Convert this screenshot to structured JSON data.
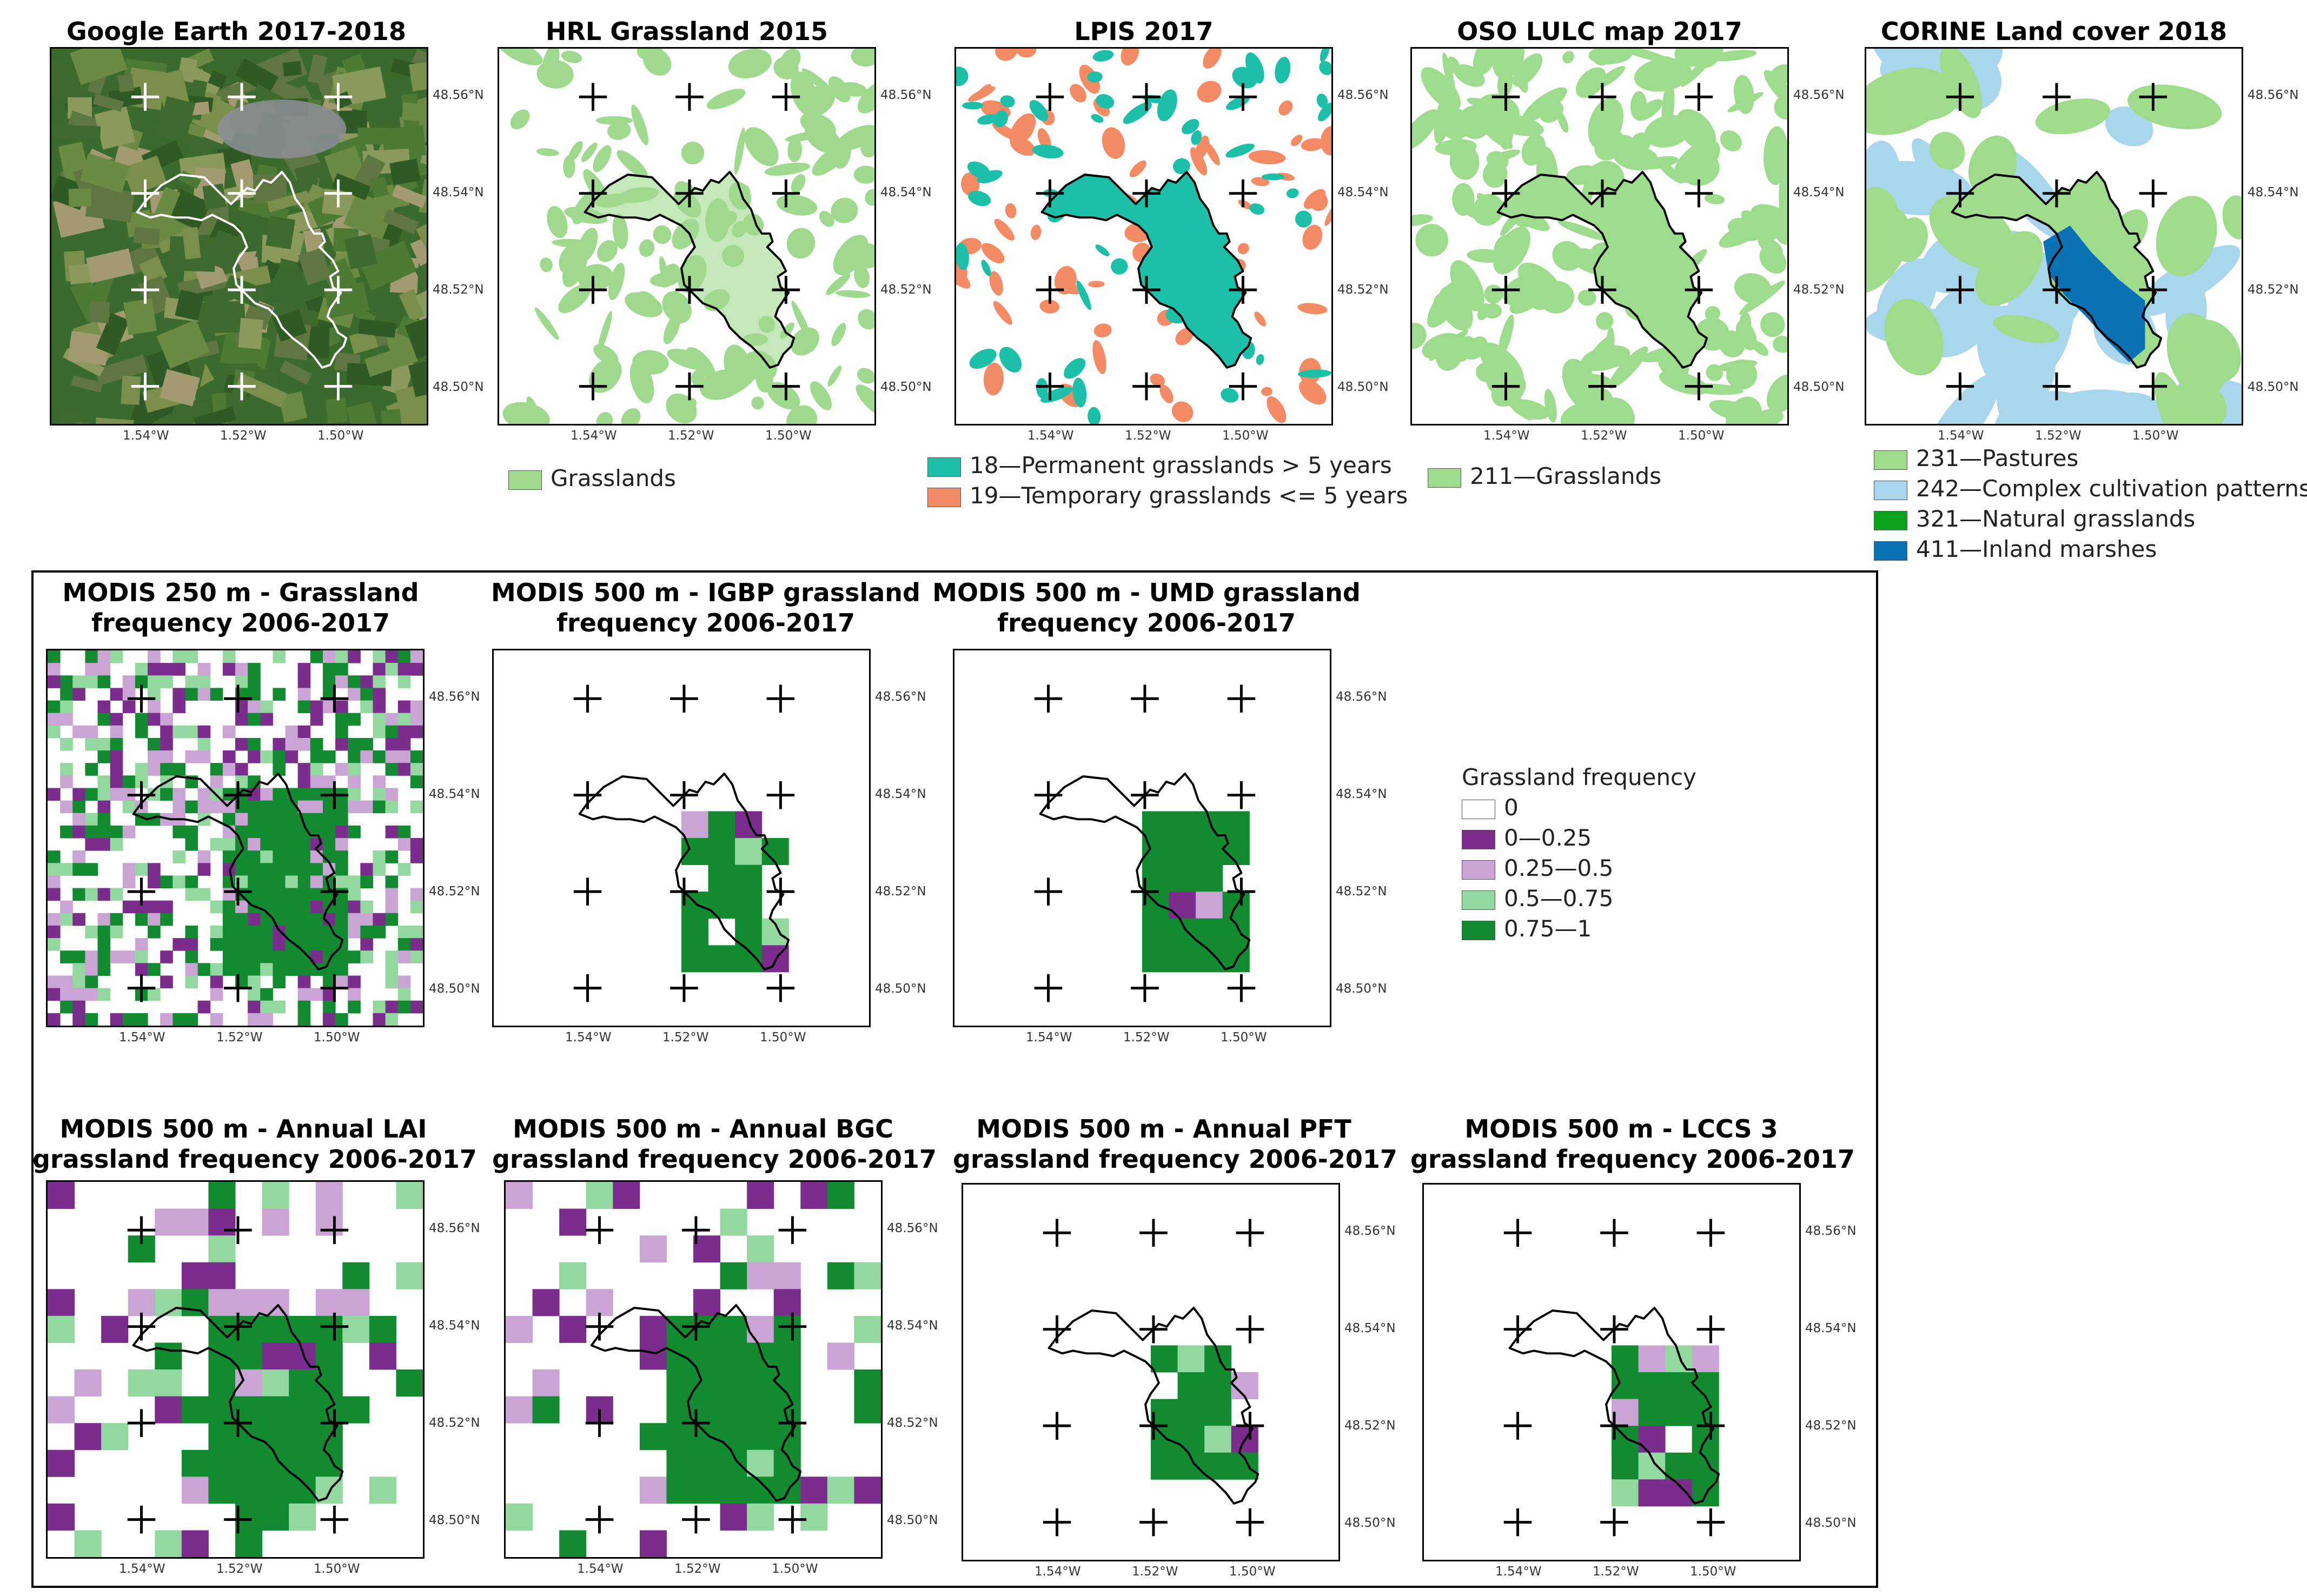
{
  "colors": {
    "hrl": "#9ed98e",
    "lpis_perm": "#1cbfa8",
    "lpis_temp": "#f58b64",
    "oso": "#9cdc8c",
    "corine_pastures": "#9edc8c",
    "corine_complex": "#a8d6ec",
    "corine_natural": "#0ca41c",
    "corine_marsh": "#0a72b4",
    "freq_0": "#ffffff",
    "freq_1": "#7b2d8e",
    "freq_2": "#c9a4d4",
    "freq_3": "#93d89e",
    "freq_4": "#118a30",
    "satellite": "#3b6b2c"
  },
  "axes": {
    "lat_labels": [
      "48.56°N",
      "48.54°N",
      "48.52°N",
      "48.50°N"
    ],
    "lon_labels": [
      "1.54°W",
      "1.52°W",
      "1.50°W"
    ]
  },
  "top_row": {
    "google": {
      "title": "Google Earth 2017-2018"
    },
    "hrl": {
      "title": "HRL Grassland 2015",
      "legend": [
        "Grasslands"
      ]
    },
    "lpis": {
      "title": "LPIS 2017",
      "legend": [
        "18—Permanent grasslands > 5 years",
        "19—Temporary grasslands <= 5 years"
      ]
    },
    "oso": {
      "title": "OSO LULC map 2017",
      "legend": [
        "211—Grasslands"
      ]
    },
    "corine": {
      "title": "CORINE Land cover 2018",
      "legend": [
        "231—Pastures",
        "242—Complex cultivation patterns",
        "321—Natural grasslands",
        "411—Inland marshes"
      ]
    }
  },
  "modis_row1": {
    "m250": {
      "title_l1": "MODIS 250 m - Grassland",
      "title_l2": "frequency 2006-2017"
    },
    "igbp": {
      "title_l1": "MODIS 500 m - IGBP grassland",
      "title_l2": "frequency 2006-2017"
    },
    "umd": {
      "title_l1": "MODIS 500 m - UMD grassland",
      "title_l2": "frequency 2006-2017"
    }
  },
  "frequency_legend": {
    "title": "Grassland frequency",
    "items": [
      "0",
      "0—0.25",
      "0.25—0.5",
      "0.5—0.75",
      "0.75—1"
    ]
  },
  "modis_row2": {
    "lai": {
      "title_l1": "MODIS 500 m - Annual LAI",
      "title_l2": "grassland frequency 2006-2017"
    },
    "bgc": {
      "title_l1": "MODIS 500 m - Annual BGC",
      "title_l2": "grassland frequency 2006-2017"
    },
    "pft": {
      "title_l1": "MODIS 500 m - Annual PFT",
      "title_l2": "grassland frequency 2006-2017"
    },
    "lccs": {
      "title_l1": "MODIS 500 m - LCCS 3",
      "title_l2": "grassland frequency 2006-2017"
    }
  }
}
